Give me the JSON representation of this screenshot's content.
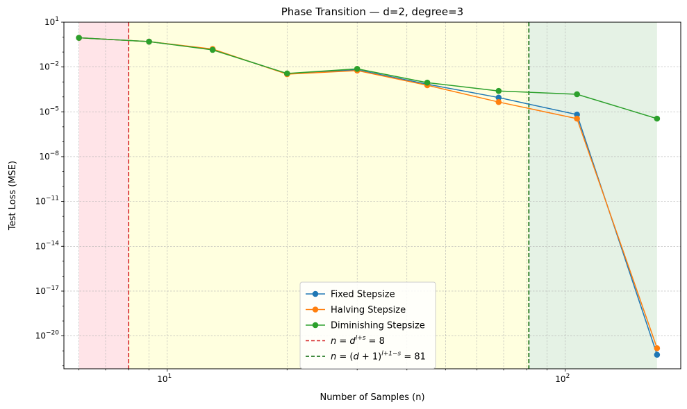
{
  "chart_data": {
    "type": "line",
    "title": "Phase Transition — d=2, degree=3",
    "xlabel": "Number of Samples (n)",
    "ylabel": "Test Loss (MSE)",
    "xscale": "log",
    "yscale": "log",
    "xlim": [
      5.5,
      195
    ],
    "ylim_exp": [
      -22.2,
      1
    ],
    "x_ticks": [
      {
        "value": 10,
        "base": "10",
        "exp": "1"
      },
      {
        "value": 100,
        "base": "10",
        "exp": "2"
      }
    ],
    "y_ticks": [
      {
        "value": 10.0,
        "base": "10",
        "exp": "1"
      },
      {
        "value": 0.01,
        "base": "10",
        "exp": "−2"
      },
      {
        "value": 1e-05,
        "base": "10",
        "exp": "−5"
      },
      {
        "value": 1e-08,
        "base": "10",
        "exp": "−8"
      },
      {
        "value": 1e-11,
        "base": "10",
        "exp": "−11"
      },
      {
        "value": 1e-14,
        "base": "10",
        "exp": "−14"
      },
      {
        "value": 1e-17,
        "base": "10",
        "exp": "−17"
      },
      {
        "value": 1e-20,
        "base": "10",
        "exp": "−20"
      }
    ],
    "grid": true,
    "legend_position": "lower-center",
    "regions": [
      {
        "x0": 6,
        "x1": 8,
        "color": "#ffb3be",
        "opacity": 0.35
      },
      {
        "x0": 8,
        "x1": 81,
        "color": "#ffffb8",
        "opacity": 0.45
      },
      {
        "x0": 81,
        "x1": 170,
        "color": "#a8d5a8",
        "opacity": 0.3
      }
    ],
    "vlines": [
      {
        "x": 8,
        "color": "#d62728",
        "label": "n = d^{l+s} = 8"
      },
      {
        "x": 81,
        "color": "#006400",
        "label": "n = (d+1)^{l+1−s} = 81"
      }
    ],
    "series": [
      {
        "name": "Fixed Stepsize",
        "color": "#1f77b4",
        "x": [
          6,
          9,
          13,
          20,
          30,
          45,
          68,
          107,
          170
        ],
        "y": [
          0.9,
          0.5,
          0.15,
          0.0035,
          0.0065,
          0.0007,
          9e-05,
          6.5e-06,
          5.5e-22
        ]
      },
      {
        "name": "Halving Stepsize",
        "color": "#ff7f0e",
        "x": [
          6,
          9,
          13,
          20,
          30,
          45,
          68,
          107,
          170
        ],
        "y": [
          0.9,
          0.5,
          0.16,
          0.0033,
          0.0058,
          0.0006,
          4.5e-05,
          3.5e-06,
          1.5e-21
        ]
      },
      {
        "name": "Diminishing Stepsize",
        "color": "#2ca02c",
        "x": [
          6,
          9,
          13,
          20,
          30,
          45,
          68,
          107,
          170
        ],
        "y": [
          0.9,
          0.5,
          0.14,
          0.0037,
          0.0075,
          0.0009,
          0.00025,
          0.00015,
          3.5e-06
        ]
      }
    ],
    "legend": [
      {
        "kind": "series",
        "label": "Fixed Stepsize",
        "color": "#1f77b4"
      },
      {
        "kind": "series",
        "label": "Halving Stepsize",
        "color": "#ff7f0e"
      },
      {
        "kind": "series",
        "label": "Diminishing Stepsize",
        "color": "#2ca02c"
      },
      {
        "kind": "dashed",
        "color": "#d62728",
        "parts": [
          {
            "t": "n",
            "i": true
          },
          {
            "t": " = "
          },
          {
            "t": "d",
            "i": true
          },
          {
            "t": "l+s",
            "i": true,
            "sup": true
          },
          {
            "t": " = 8"
          }
        ]
      },
      {
        "kind": "dashed",
        "color": "#006400",
        "parts": [
          {
            "t": "n",
            "i": true
          },
          {
            "t": " = ("
          },
          {
            "t": "d",
            "i": true
          },
          {
            "t": " + 1)"
          },
          {
            "t": "l+1−s",
            "i": true,
            "sup": true
          },
          {
            "t": " = 81"
          }
        ]
      }
    ]
  }
}
